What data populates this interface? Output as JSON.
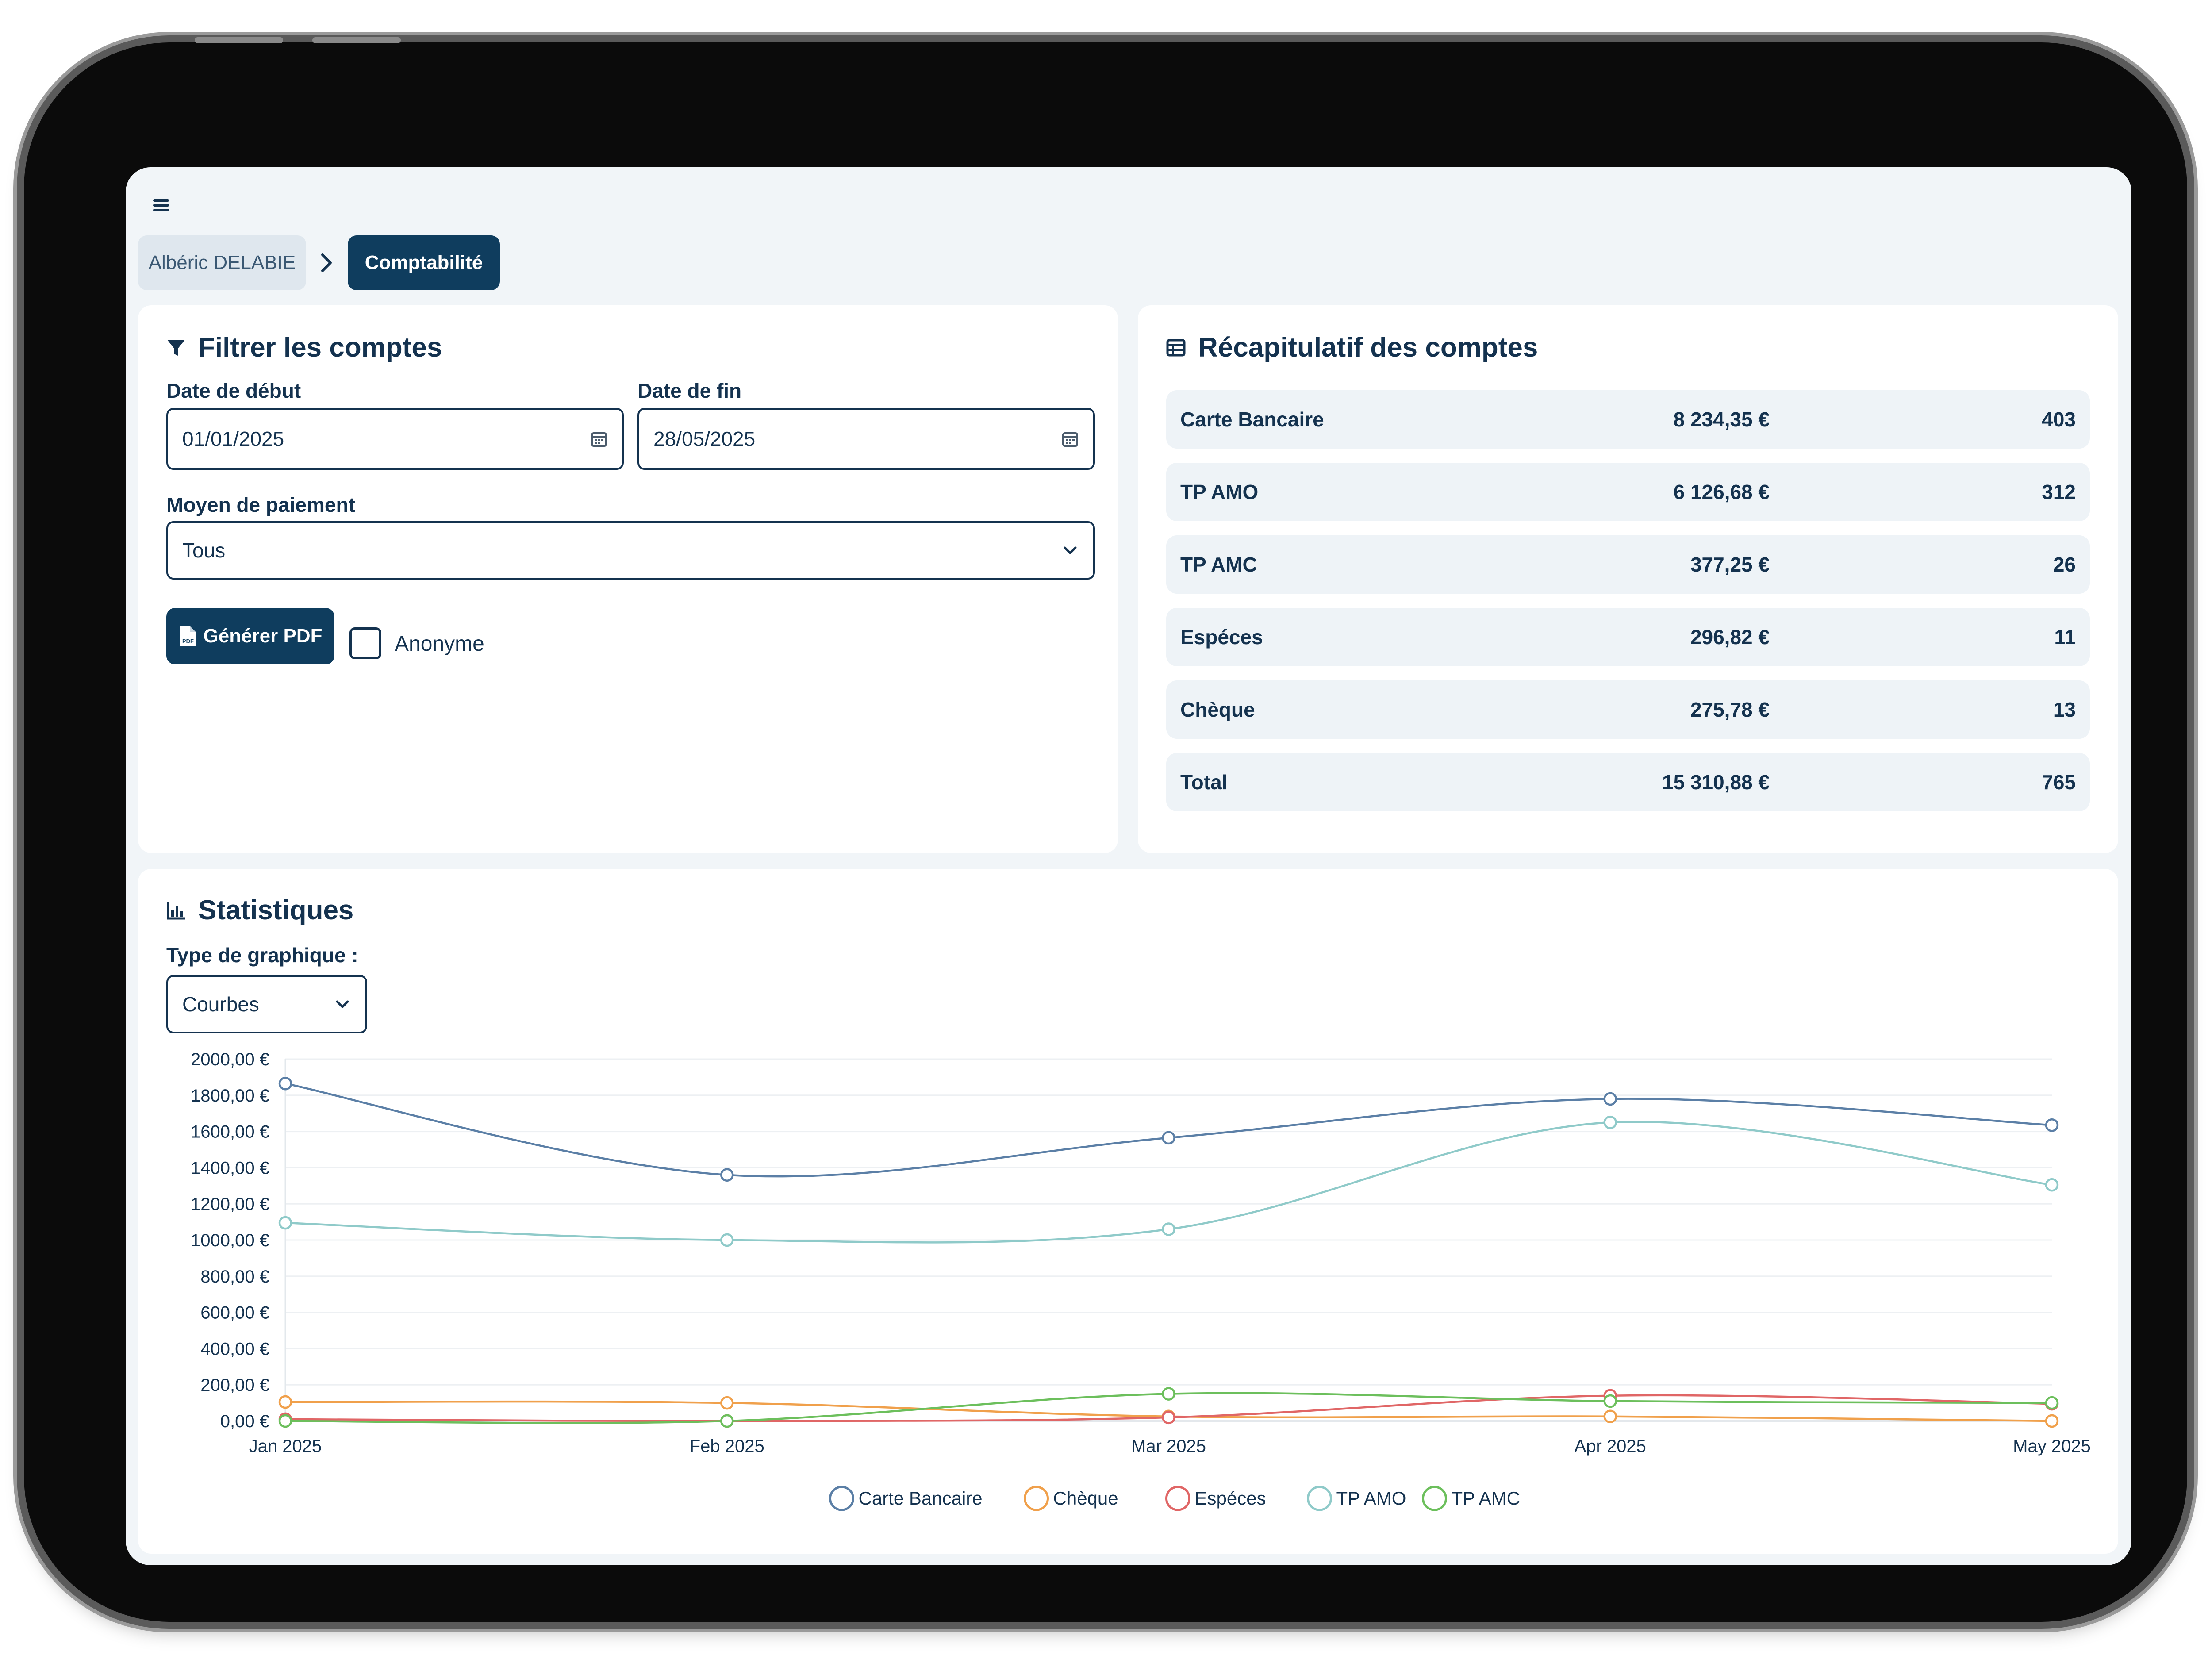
{
  "nav": {
    "menu_icon": "hamburger-icon"
  },
  "breadcrumb": {
    "items": [
      "Albéric DELABIE",
      "Comptabilité"
    ]
  },
  "filter": {
    "title": "Filtrer les comptes",
    "start_label": "Date de début",
    "start_value": "01/01/2025",
    "end_label": "Date de fin",
    "end_value": "28/05/2025",
    "payment_label": "Moyen de paiement",
    "payment_value": "Tous",
    "pdf_button": "Générer PDF",
    "anonyme_label": "Anonyme",
    "anonyme_checked": false
  },
  "summary": {
    "title": "Récapitulatif des comptes",
    "rows": [
      {
        "name": "Carte Bancaire",
        "amount": "8 234,35 €",
        "count": "403"
      },
      {
        "name": "TP AMO",
        "amount": "6 126,68 €",
        "count": "312"
      },
      {
        "name": "TP AMC",
        "amount": "377,25 €",
        "count": "26"
      },
      {
        "name": "Espéces",
        "amount": "296,82 €",
        "count": "11"
      },
      {
        "name": "Chèque",
        "amount": "275,78 €",
        "count": "13"
      }
    ],
    "total": {
      "name": "Total",
      "amount": "15 310,88 €",
      "count": "765"
    }
  },
  "stats": {
    "title": "Statistiques",
    "chart_type_label": "Type de graphique :",
    "chart_type_value": "Courbes"
  },
  "colors": {
    "primary": "#0f3d5e",
    "text": "#14324f",
    "carte_bancaire": "#5b7fa6",
    "cheque": "#f0a04b",
    "especes": "#e06666",
    "tp_amo": "#8fcac9",
    "tp_amc": "#6cbf5c"
  },
  "chart_data": {
    "type": "line",
    "categories": [
      "Jan 2025",
      "Feb 2025",
      "Mar 2025",
      "Apr 2025",
      "May 2025"
    ],
    "ylim": [
      0,
      2000
    ],
    "yticks": [
      "0,00 €",
      "200,00 €",
      "400,00 €",
      "600,00 €",
      "800,00 €",
      "1000,00 €",
      "1200,00 €",
      "1400,00 €",
      "1600,00 €",
      "1800,00 €",
      "2000,00 €"
    ],
    "series": [
      {
        "name": "Carte Bancaire",
        "color": "#5b7fa6",
        "values": [
          1865,
          1360,
          1565,
          1780,
          1635
        ]
      },
      {
        "name": "Chèque",
        "color": "#f0a04b",
        "values": [
          105,
          100,
          25,
          25,
          0
        ]
      },
      {
        "name": "Espéces",
        "color": "#e06666",
        "values": [
          10,
          0,
          20,
          140,
          95
        ]
      },
      {
        "name": "TP AMO",
        "color": "#8fcac9",
        "values": [
          1095,
          1000,
          1060,
          1650,
          1305
        ]
      },
      {
        "name": "TP AMC",
        "color": "#6cbf5c",
        "values": [
          0,
          0,
          150,
          110,
          100
        ]
      }
    ],
    "legend_position": "bottom",
    "grid": true
  }
}
